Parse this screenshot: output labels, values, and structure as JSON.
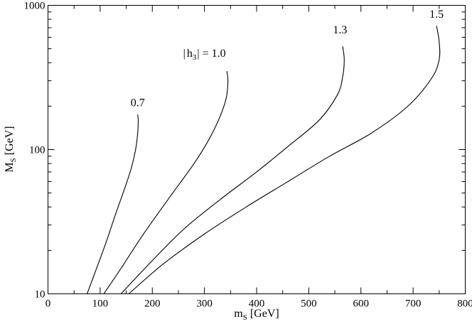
{
  "chart_data": {
    "type": "line",
    "title": "",
    "xlabel": {
      "main": "m",
      "sub": "S",
      "rest": " [GeV]"
    },
    "ylabel": {
      "main": "M",
      "sub": "S",
      "rest": " [GeV]"
    },
    "xlim": [
      0,
      800
    ],
    "ylim": [
      10,
      1000
    ],
    "yscale": "log",
    "grid": false,
    "x_ticks": [
      0,
      100,
      200,
      300,
      400,
      500,
      600,
      700,
      800
    ],
    "y_ticks": [
      10,
      100,
      1000
    ],
    "series": [
      {
        "label": "0.7",
        "x": [
          75,
          90,
          110,
          130,
          148,
          160,
          168,
          172,
          173,
          172
        ],
        "y": [
          10,
          14,
          22,
          36,
          55,
          75,
          100,
          130,
          160,
          175
        ]
      },
      {
        "label": "|h3| = 1.0",
        "x": [
          107,
          140,
          180,
          230,
          280,
          310,
          330,
          342,
          345,
          343
        ],
        "y": [
          10,
          15,
          25,
          45,
          80,
          120,
          170,
          230,
          300,
          350
        ]
      },
      {
        "label": "1.3",
        "x": [
          140,
          200,
          260,
          330,
          400,
          460,
          520,
          555,
          565,
          568,
          565
        ],
        "y": [
          10,
          17,
          28,
          45,
          70,
          105,
          160,
          240,
          320,
          420,
          520
        ]
      },
      {
        "label": "1.5",
        "x": [
          155,
          220,
          300,
          380,
          460,
          540,
          620,
          690,
          735,
          750,
          750,
          745
        ],
        "y": [
          10,
          16,
          26,
          40,
          60,
          90,
          130,
          200,
          310,
          420,
          560,
          720
        ]
      }
    ],
    "annotations": [
      {
        "text_parts": [
          "0.7"
        ],
        "x": 172,
        "y": 200
      },
      {
        "text_parts": [
          "|",
          "h",
          "3",
          "|",
          " = 1.0"
        ],
        "x": 300,
        "y": 440
      },
      {
        "text_parts": [
          "1.3"
        ],
        "x": 560,
        "y": 640
      },
      {
        "text_parts": [
          "1.5"
        ],
        "x": 745,
        "y": 820
      }
    ]
  }
}
